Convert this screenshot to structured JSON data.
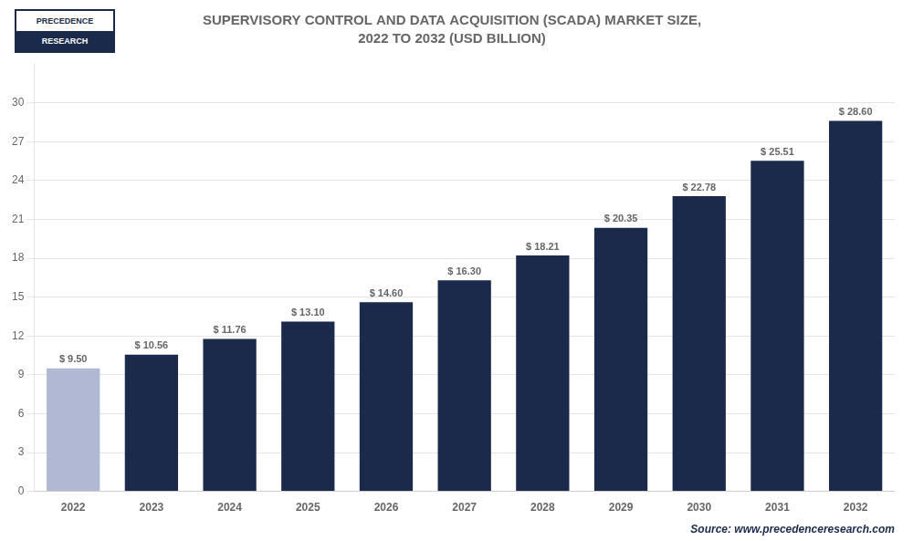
{
  "chart_data": {
    "type": "bar",
    "title": "SUPERVISORY CONTROL AND DATA ACQUISITION (SCADA) MARKET SIZE,",
    "subtitle": "2022 TO 2032 (USD BILLION)",
    "annotations": [
      "PRECEDENCE",
      "RESEARCH",
      "Source: www.precedenceresearch.com"
    ],
    "categories": [
      "2022",
      "2023",
      "2024",
      "2025",
      "2026",
      "2027",
      "2028",
      "2029",
      "2030",
      "2031",
      "2032"
    ],
    "values": [
      9.5,
      10.56,
      11.76,
      13.1,
      14.6,
      16.3,
      18.21,
      20.35,
      22.78,
      25.51,
      28.6
    ],
    "value_labels": [
      "$ 9.50",
      "$ 10.56",
      "$ 11.76",
      "$ 13.10",
      "$ 14.60",
      "$ 16.30",
      "$ 18.21",
      "$ 20.35",
      "$ 22.78",
      "$ 25.51",
      "$ 28.60"
    ],
    "data_labels": true,
    "colors": [
      "#b0b8d4",
      "#1b2a4a",
      "#1b2a4a",
      "#1b2a4a",
      "#1b2a4a",
      "#1b2a4a",
      "#1b2a4a",
      "#1b2a4a",
      "#1b2a4a",
      "#1b2a4a",
      "#1b2a4a"
    ],
    "ylim": [
      0,
      33
    ],
    "yticks": [
      0,
      3,
      6,
      9,
      12,
      15,
      18,
      21,
      24,
      27,
      30
    ],
    "grid": true
  }
}
